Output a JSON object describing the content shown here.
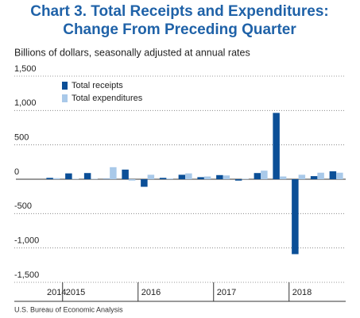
{
  "chart_data": {
    "type": "bar",
    "title": [
      "Chart 3. Total Receipts and Expenditures:",
      "Change From Preceding Quarter"
    ],
    "subtitle": "Billions of dollars, seasonally adjusted at annual rates",
    "source": "U.S. Bureau of Economic Analysis",
    "categories": [
      "2014",
      "2015",
      null,
      null,
      null,
      "2016",
      null,
      null,
      null,
      "2017",
      null,
      null,
      null,
      "2018",
      null,
      null
    ],
    "series": [
      {
        "name": "Total receipts",
        "color": "#0b4f97",
        "values": [
          20,
          85,
          90,
          5,
          140,
          -110,
          20,
          65,
          30,
          60,
          -20,
          90,
          965,
          -1090,
          45,
          115
        ]
      },
      {
        "name": "Total expenditures",
        "color": "#a9c9e9",
        "values": [
          15,
          5,
          5,
          175,
          -20,
          65,
          10,
          85,
          40,
          55,
          5,
          125,
          40,
          65,
          95,
          95
        ]
      }
    ],
    "ylim": [
      -1500,
      1500
    ],
    "yticks": [
      {
        "value": 1500,
        "label": "1,500"
      },
      {
        "value": 1000,
        "label": "1,000"
      },
      500,
      0,
      -500,
      {
        "value": -1000,
        "label": "-1,000"
      },
      {
        "value": -1500,
        "label": "-1,500"
      }
    ],
    "grid": true,
    "legend": "upper left"
  }
}
